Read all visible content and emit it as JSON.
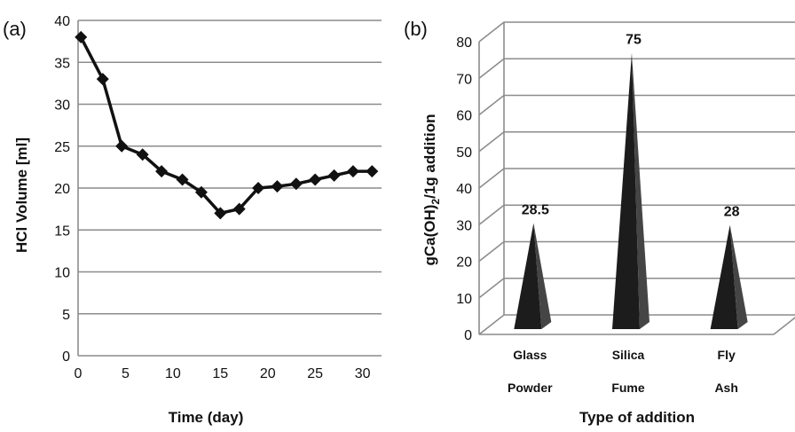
{
  "chart_data": [
    {
      "type": "line",
      "panel_label": "(a)",
      "xlabel": "Time (day)",
      "ylabel": "HCl Volume [ml]",
      "xlim": [
        0,
        32
      ],
      "ylim": [
        0,
        40
      ],
      "x_ticks": [
        "0",
        "5",
        "10",
        "15",
        "20",
        "25",
        "30"
      ],
      "y_ticks": [
        "0",
        "5",
        "10",
        "15",
        "20",
        "25",
        "30",
        "35",
        "40"
      ],
      "grid": true,
      "series": [
        {
          "x": [
            0.3,
            2.6,
            4.6,
            6.8,
            8.8,
            11,
            13,
            15,
            17,
            19,
            21,
            23,
            25,
            27,
            29,
            31
          ],
          "y": [
            38,
            33,
            25,
            24,
            22,
            21,
            19.5,
            17,
            17.5,
            20,
            20.2,
            20.5,
            21,
            21.5,
            22,
            22
          ]
        }
      ]
    },
    {
      "type": "bar",
      "bar_shape": "cone-3d",
      "panel_label": "(b)",
      "xlabel": "Type of addition",
      "ylabel_parts": [
        "gCa(OH)",
        "2",
        "/1g addition"
      ],
      "ylim": [
        0,
        80
      ],
      "y_ticks": [
        "0",
        "10",
        "20",
        "30",
        "40",
        "50",
        "60",
        "70",
        "80"
      ],
      "categories": [
        {
          "line1": "Glass",
          "line2": "Powder"
        },
        {
          "line1": "Silica",
          "line2": "Fume"
        },
        {
          "line1": "Fly",
          "line2": "Ash"
        }
      ],
      "values": [
        28.5,
        75,
        28
      ],
      "data_labels": [
        "28.5",
        "75",
        "28"
      ],
      "grid": true
    }
  ]
}
